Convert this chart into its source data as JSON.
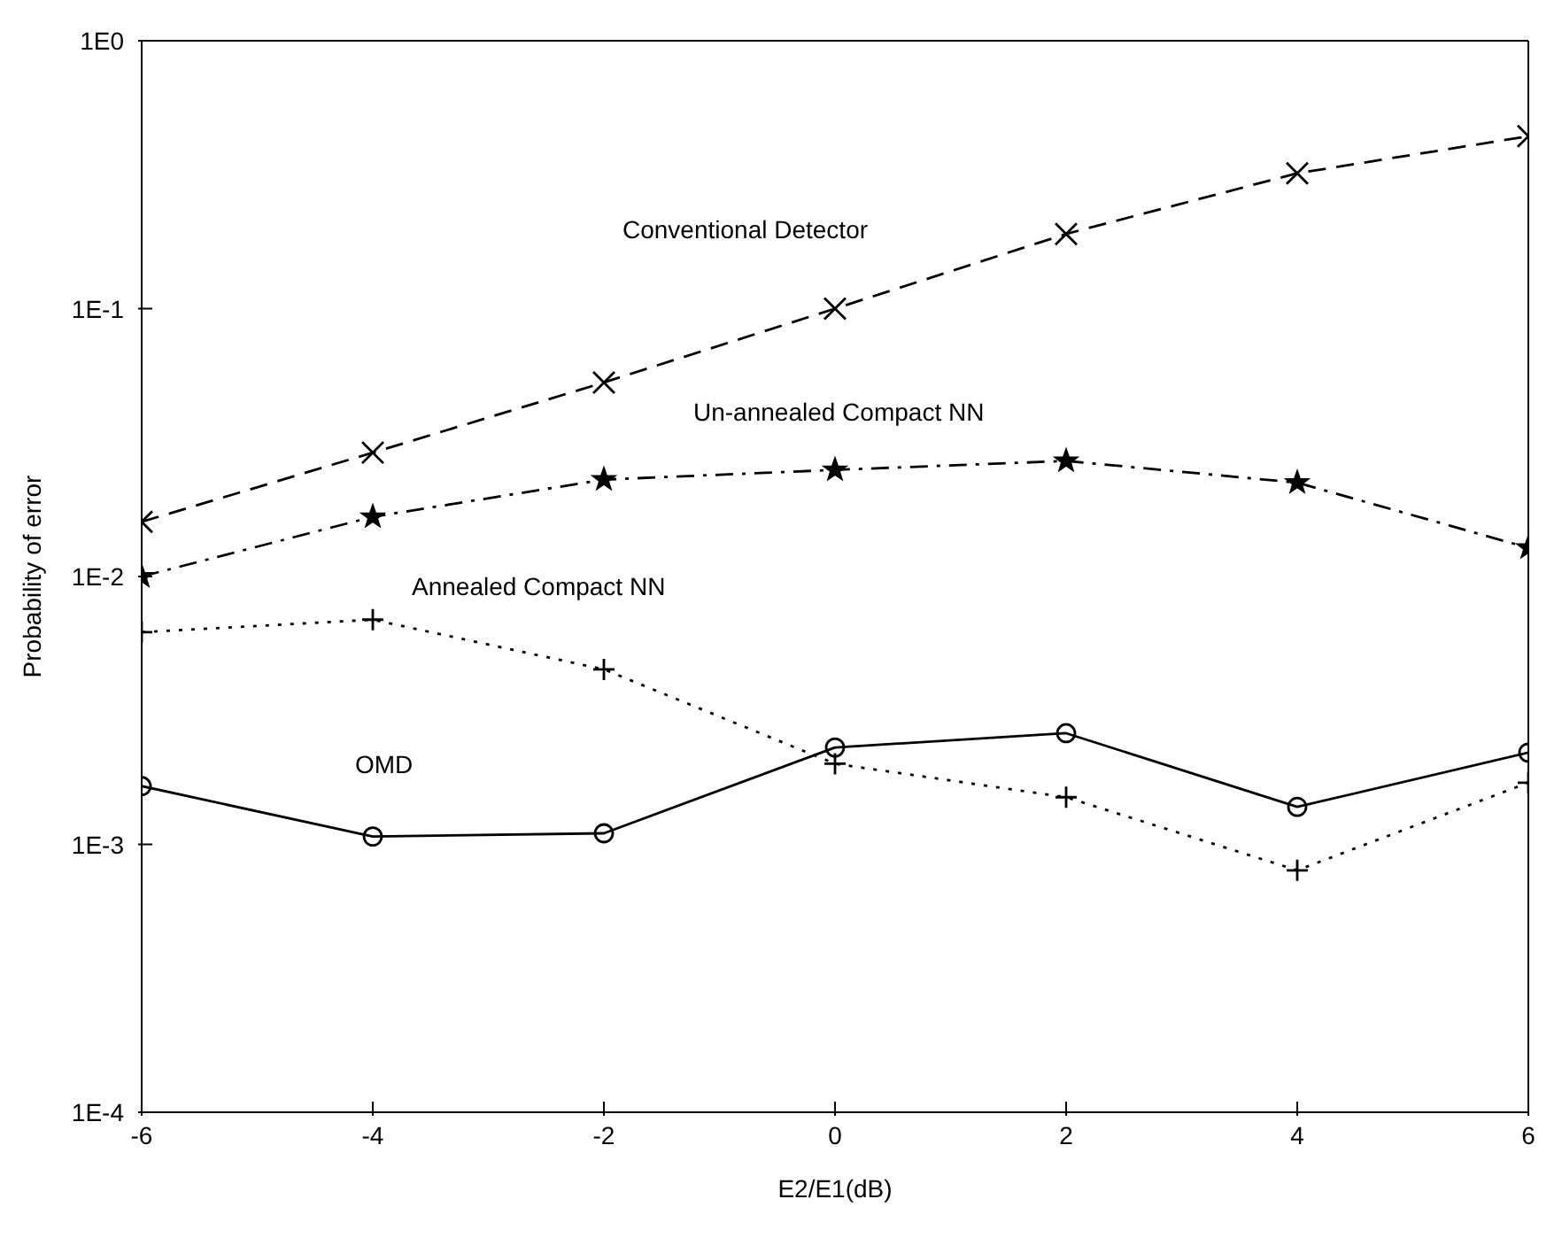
{
  "chart_data": {
    "type": "line",
    "xlabel": "E2/E1(dB)",
    "ylabel": "Probability of error",
    "x": [
      -6,
      -4,
      -2,
      0,
      2,
      4,
      6
    ],
    "series": [
      {
        "name": "Conventional Detector",
        "color": "#000000",
        "marker": "cross",
        "line_style": "dashed",
        "values": [
          0.016,
          0.029,
          0.053,
          0.1,
          0.19,
          0.32,
          0.44
        ]
      },
      {
        "name": "Un-annealed Compact NN",
        "color": "#000000",
        "marker": "star",
        "line_style": "dashdot",
        "values": [
          0.01,
          0.0167,
          0.023,
          0.025,
          0.027,
          0.0224,
          0.0128
        ]
      },
      {
        "name": "Annealed Compact NN",
        "color": "#000000",
        "marker": "plus",
        "line_style": "dotted",
        "values": [
          0.0062,
          0.0069,
          0.0045,
          0.002,
          0.0015,
          0.0008,
          0.0017
        ]
      },
      {
        "name": "OMD",
        "color": "#000000",
        "marker": "circle",
        "line_style": "solid",
        "values": [
          0.00165,
          0.00107,
          0.0011,
          0.0023,
          0.0026,
          0.00138,
          0.0022
        ]
      }
    ],
    "log": "y",
    "xlim": [
      -6,
      6
    ],
    "xticks": [
      -6,
      -4,
      -2,
      0,
      2,
      4,
      6
    ],
    "ylim": [
      0.0001,
      1
    ],
    "yticks": [
      {
        "value": 0.0001,
        "label": "1E-4"
      },
      {
        "value": 0.001,
        "label": "1E-3"
      },
      {
        "value": 0.01,
        "label": "1E-2"
      },
      {
        "value": 0.1,
        "label": "1E-1"
      },
      {
        "value": 1,
        "label": "1E0"
      }
    ],
    "grid": false,
    "legend": false
  }
}
